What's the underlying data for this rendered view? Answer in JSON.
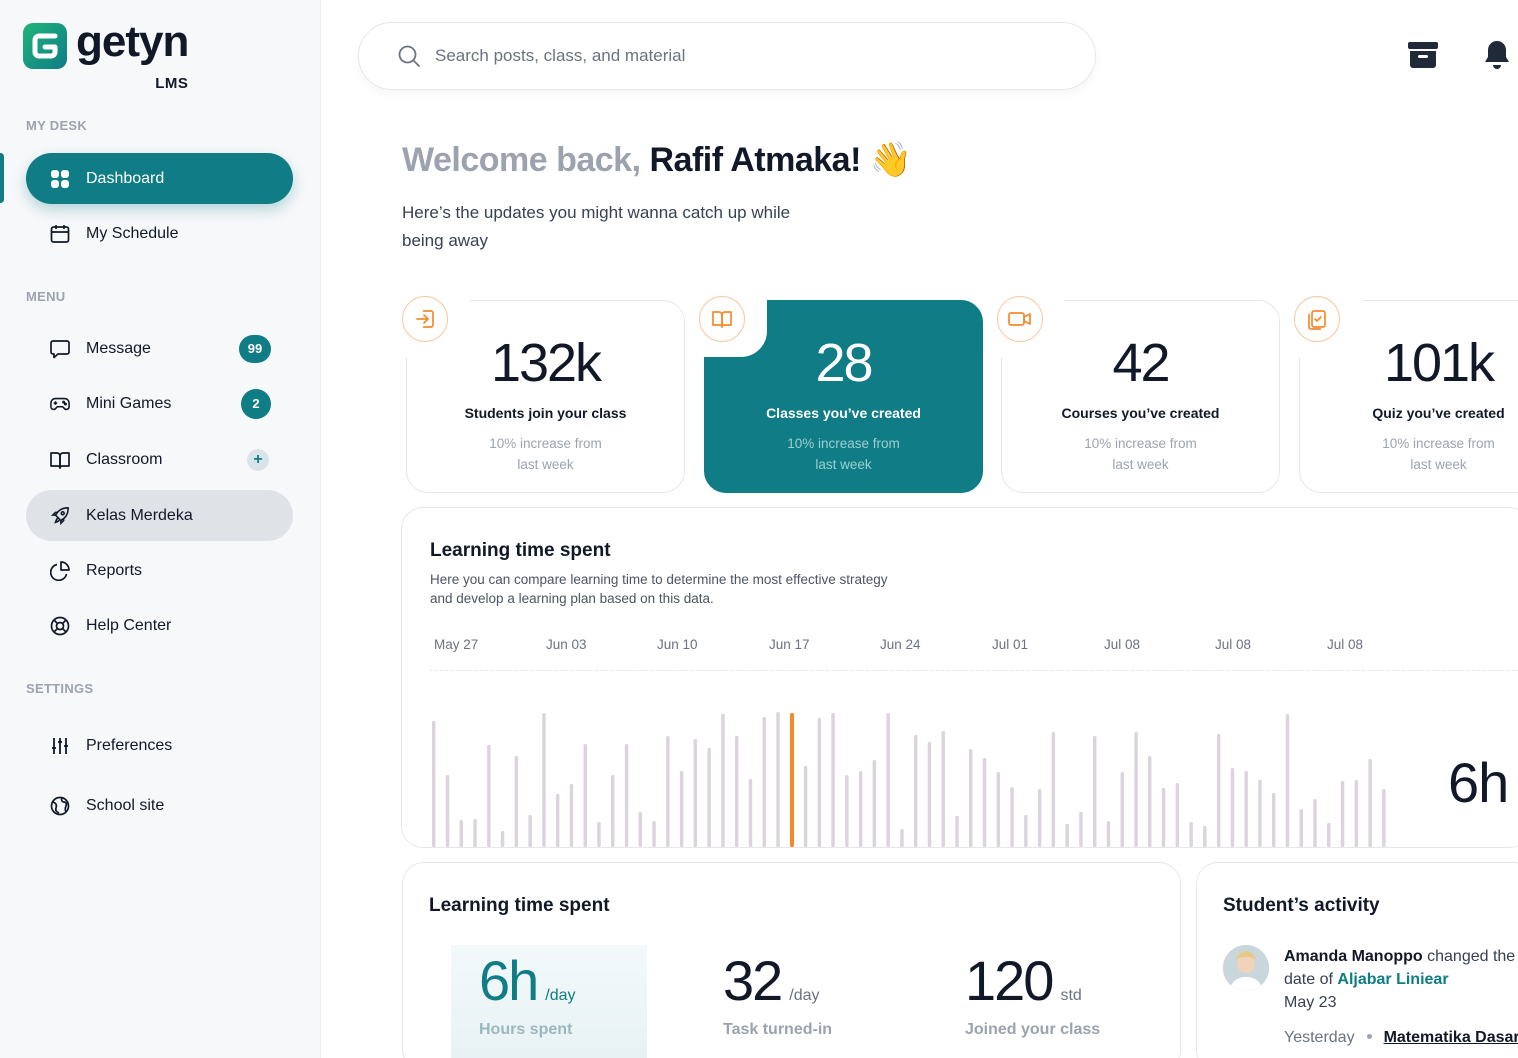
{
  "brand": {
    "name": "getyn",
    "sub": "LMS",
    "accent": "#0f7c86",
    "highlight": "#f58a2b"
  },
  "sidebar": {
    "my_desk_label": "MY DESK",
    "menu_label": "MENU",
    "settings_label": "SETTINGS",
    "my_desk": [
      {
        "label": "Dashboard",
        "icon": "grid-icon",
        "active": true
      },
      {
        "label": "My Schedule",
        "icon": "calendar-icon"
      }
    ],
    "menu": [
      {
        "label": "Message",
        "icon": "chat-icon",
        "badge": "99"
      },
      {
        "label": "Mini Games",
        "icon": "gamepad-icon",
        "badge": "2"
      },
      {
        "label": "Classroom",
        "icon": "book-open-icon",
        "badge": "+"
      },
      {
        "label": "Kelas Merdeka",
        "icon": "rocket-icon",
        "hover": true
      },
      {
        "label": "Reports",
        "icon": "pie-chart-icon"
      },
      {
        "label": "Help Center",
        "icon": "lifebuoy-icon"
      }
    ],
    "settings": [
      {
        "label": "Preferences",
        "icon": "sliders-icon"
      },
      {
        "label": "School site",
        "icon": "globe-icon"
      }
    ]
  },
  "header": {
    "search_placeholder": "Search posts, class, and material",
    "archive_icon": "archive-icon",
    "bell_icon": "bell-icon"
  },
  "welcome": {
    "prefix": "Welcome back,",
    "name": "Rafif Atmaka!",
    "emoji": "👋",
    "subtitle": "Here’s the updates you might wanna catch up while being away"
  },
  "stats": [
    {
      "value": "132k",
      "label": "Students join your class",
      "note": "10% increase from last week",
      "icon": "login-icon"
    },
    {
      "value": "28",
      "label": "Classes you’ve created",
      "note": "10% increase from last week",
      "icon": "book-icon",
      "featured": true
    },
    {
      "value": "42",
      "label": "Courses you’ve created",
      "note": "10% increase from last week",
      "icon": "video-icon"
    },
    {
      "value": "101k",
      "label": "Quiz you’ve created",
      "note": "10% increase from last week",
      "icon": "clipboard-icon"
    }
  ],
  "learning_chart": {
    "title": "Learning time spent",
    "description": "Here you can compare learning time to determine the most effective strategy and develop a learning plan based on this data.",
    "dates": [
      "May 27",
      "Jun 03",
      "Jun 10",
      "Jun 17",
      "Jun 24",
      "Jul 01",
      "Jul 08",
      "Jul 08",
      "Jul 08"
    ],
    "big_value": "6h"
  },
  "chart_data": {
    "type": "bar",
    "title": "Learning time spent",
    "xlabel": "",
    "ylabel": "",
    "x_ticks": [
      "May 27",
      "Jun 03",
      "Jun 10",
      "Jun 17",
      "Jun 24",
      "Jul 01",
      "Jul 08",
      "Jul 08",
      "Jul 08"
    ],
    "highlight_index": 26,
    "highlight_color": "#f58a2b",
    "bar_color": "#dcd4dd",
    "values": [
      126,
      72,
      27,
      28,
      102,
      16,
      91,
      32,
      134,
      53,
      63,
      103,
      25,
      72,
      103,
      35,
      26,
      111,
      76,
      108,
      99,
      133,
      111,
      68,
      130,
      135,
      134,
      81,
      129,
      134,
      72,
      76,
      87,
      134,
      18,
      112,
      105,
      116,
      31,
      98,
      89,
      75,
      60,
      32,
      58,
      115,
      23,
      35,
      111,
      26,
      75,
      115,
      91,
      59,
      64,
      25,
      21,
      113,
      79,
      76,
      67,
      54,
      133,
      38,
      48,
      24,
      66,
      67,
      88,
      58
    ],
    "max_value": 135
  },
  "learning_summary": {
    "title": "Learning time spent",
    "metrics": [
      {
        "value": "6h",
        "unit": "/day",
        "caption": "Hours spent",
        "highlight": true
      },
      {
        "value": "32",
        "unit": "/day",
        "caption": "Task turned-in"
      },
      {
        "value": "120",
        "unit": "std",
        "caption": "Joined your class"
      }
    ]
  },
  "activity": {
    "title": "Student’s activity",
    "person": "Amanda Manoppo",
    "action": "changed the delivery date of",
    "target": "Aljabar Liniear",
    "date": "May 23",
    "when": "Yesterday",
    "course": "Matematika Dasar"
  }
}
